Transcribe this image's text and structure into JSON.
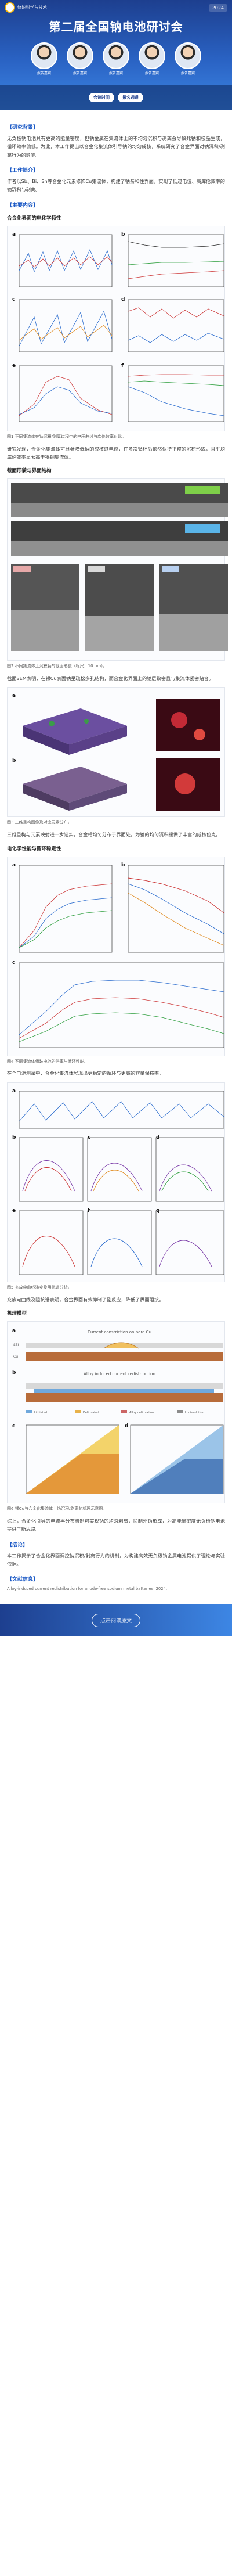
{
  "banner": {
    "org": "储能科学与技术",
    "title": "第二届全国钠电池研讨会",
    "date": "2024",
    "chips": [
      "会议时间",
      "报名通道"
    ],
    "speakers": [
      "报告嘉宾",
      "报告嘉宾",
      "报告嘉宾",
      "报告嘉宾",
      "报告嘉宾"
    ]
  },
  "sections": {
    "intro_title": "【研究背景】",
    "intro_text": "无负极钠电池具有更高的能量密度，但钠金属在集流体上的不均匀沉积与剥离会导致死钠和枝晶生成，循环效率偏低。为此，本工作提出以合金化集流体引导钠的均匀成核，系统研究了合金界面对钠沉积/剥离行为的影响。",
    "results_title": "【工作简介】",
    "results_text": "作者以Sb、Bi、Sn等合金化元素修饰Cu集流体，构建了钠亲和性界面，实现了低过电位、高库伦效率的钠沉积与剥离。",
    "fig1_title": "【主要内容】",
    "fig1_sub": "合金化界面的电化学特性",
    "fig1_caption": "图1 不同集流体在钠沉积/剥离过程中的电压曲线与库伦效率对比。",
    "para2": "研究发现，合金化集流体可显著降低钠的成核过电位，在多次循环后依然保持平整的沉积形貌，且平均库伦效率显著高于裸铜集流体。",
    "fig2_sub": "截面形貌与界面结构",
    "fig2_caption": "图2 不同集流体上沉积钠的截面形貌（标尺：10 μm）。",
    "para3": "截面SEM表明，在裸Cu表面钠呈疏松多孔结构，而合金化界面上的钠层致密且与集流体紧密贴合。",
    "fig3_caption": "图3 三维重构图像及对应元素分布。",
    "para4": "三维重构与元素映射进一步证实，合金相均匀分布于界面处，为钠的均匀沉积提供了丰富的成核位点。",
    "fig4_sub": "电化学性能与循环稳定性",
    "fig4_caption": "图4 不同集流体组装电池的倍率与循环性能。",
    "para5": "在全电池测试中，合金化集流体展现出更稳定的循环与更高的容量保持率。",
    "fig5_caption": "图5 充放电曲线演变及阻抗谱分析。",
    "para6": "充放电曲线及阻抗谱表明，合金界面有效抑制了副反应，降低了界面阻抗。",
    "fig6_sub": "机理模型",
    "fig6_caption": "图6 裸Cu与合金化集流体上钠沉积/剥离的机理示意图。",
    "para7": "综上，合金化引导的电流再分布机制可实现钠的均匀剥离，抑制死钠形成，为高能量密度无负极钠电池提供了新思路。",
    "conclusion_title": "【结论】",
    "conclusion_text": "本工作揭示了合金化界面调控钠沉积/剥离行为的机制，为构建高效无负极钠金属电池提供了理论与实验依据。",
    "ref_title": "【文献信息】",
    "ref_text": "Alloy-induced current redistribution for anode-free sodium metal batteries. 2024."
  },
  "figure_labels": {
    "fig6_top": "Current constriction on bare Cu",
    "fig6_mid": "Alloy induced current redistribution",
    "sei": "SEI",
    "cu": "Cu",
    "legend": [
      "Lithiated",
      "Delithiated",
      "Alloy delithiation",
      "Li dissolution"
    ]
  },
  "footer": {
    "button": "点击阅读原文"
  }
}
